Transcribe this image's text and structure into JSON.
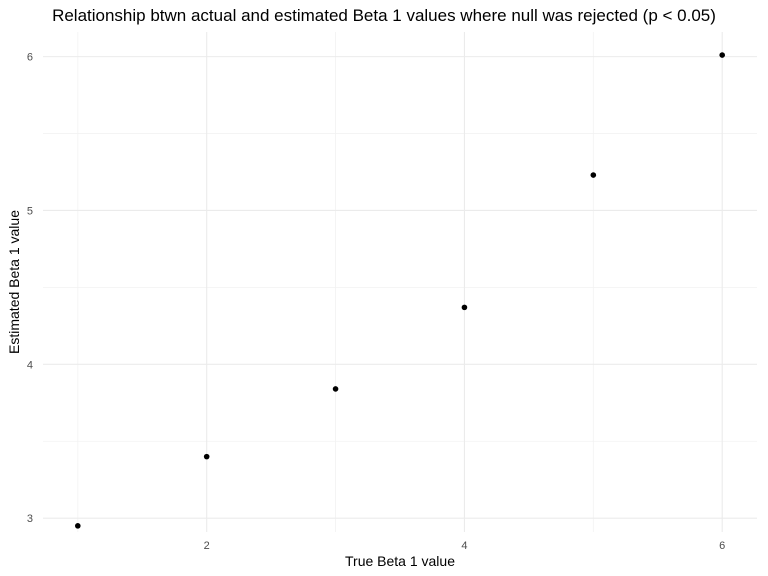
{
  "chart_data": {
    "type": "scatter",
    "title": "Relationship btwn actual and estimated Beta 1 values where null was rejected (p < 0.05)",
    "xlabel": "True Beta 1 value",
    "ylabel": "Estimated Beta 1 value",
    "x": [
      1,
      2,
      3,
      4,
      5,
      6
    ],
    "y": [
      2.95,
      3.4,
      3.84,
      4.37,
      5.23,
      6.01
    ],
    "xlim": [
      0.73,
      6.27
    ],
    "ylim": [
      2.91,
      6.16
    ],
    "x_ticks": [
      2,
      4,
      6
    ],
    "y_ticks": [
      3,
      4,
      5,
      6
    ],
    "x_tick_labels": [
      "2",
      "4",
      "6"
    ],
    "y_tick_labels": [
      "3",
      "4",
      "5",
      "6"
    ],
    "grid": true,
    "point_color": "#000000",
    "grid_color": "#ebebeb"
  }
}
